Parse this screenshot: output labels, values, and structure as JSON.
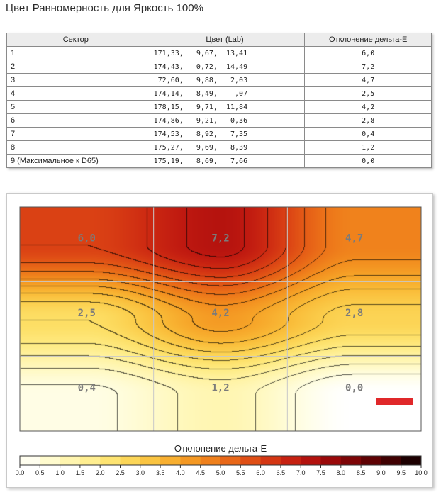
{
  "page": {
    "title": "Цвет Равномерность для Яркость 100%"
  },
  "table": {
    "headers": [
      "Сектор",
      "Цвет (Lab)",
      "Отклонение дельта-E"
    ],
    "rows": [
      {
        "sector": "1",
        "lab": "171,33,   9,67,  13,41",
        "de": "6,0"
      },
      {
        "sector": "2",
        "lab": "174,43,   0,72,  14,49",
        "de": "7,2"
      },
      {
        "sector": "3",
        "lab": " 72,60,   9,88,   2,03",
        "de": "4,7"
      },
      {
        "sector": "4",
        "lab": "174,14,   8,49,    ,07",
        "de": "2,5"
      },
      {
        "sector": "5",
        "lab": "178,15,   9,71,  11,84",
        "de": "4,2"
      },
      {
        "sector": "6",
        "lab": "174,86,   9,21,   0,36",
        "de": "2,8"
      },
      {
        "sector": "7",
        "lab": "174,53,   8,92,   7,35",
        "de": "0,4"
      },
      {
        "sector": "8",
        "lab": "175,27,   9,69,   8,39",
        "de": "1,2"
      },
      {
        "sector": "9 (Максимальное к D65)",
        "lab": "175,19,   8,69,   7,66",
        "de": "0,0"
      }
    ]
  },
  "chart_data": {
    "type": "heatmap",
    "grid": {
      "rows": 3,
      "cols": 3
    },
    "values": [
      [
        6.0,
        7.2,
        4.7
      ],
      [
        2.5,
        4.2,
        2.8
      ],
      [
        0.4,
        1.2,
        0.0
      ]
    ],
    "cell_labels": [
      [
        "6,0",
        "7,2",
        "4,7"
      ],
      [
        "2,5",
        "4,2",
        "2,8"
      ],
      [
        "0,4",
        "1,2",
        "0,0"
      ]
    ],
    "colorbar": {
      "title": "Отклонение дельта-E",
      "range": [
        0,
        10
      ],
      "ticks": [
        "0.0",
        "0.5",
        "1.0",
        "1.5",
        "2.0",
        "2.5",
        "3.0",
        "3.5",
        "4.0",
        "4.5",
        "5.0",
        "5.5",
        "6.0",
        "6.5",
        "7.0",
        "7.5",
        "8.0",
        "8.5",
        "9.0",
        "9.5",
        "10.0"
      ]
    },
    "colors": {
      "marker": "#e0282a",
      "grid_line": "#c8c8c8"
    }
  }
}
